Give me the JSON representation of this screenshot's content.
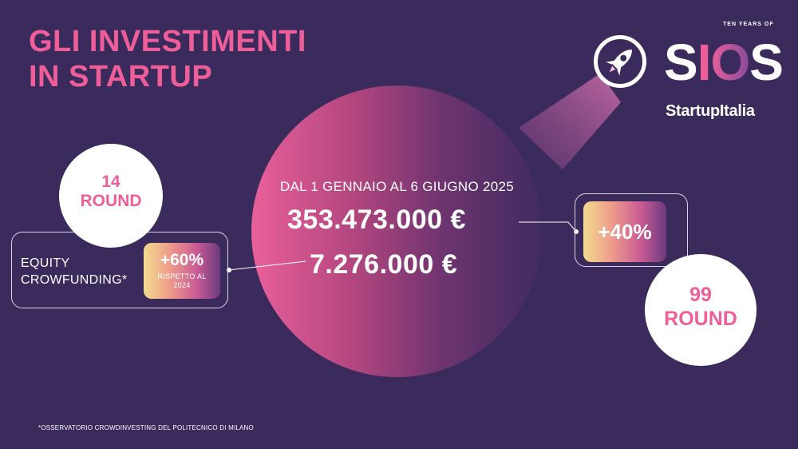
{
  "title": {
    "line1": "GLI INVESTIMENTI",
    "line2": "IN STARTUP"
  },
  "main": {
    "period": "DAL 1 GENNAIO AL 6 GIUGNO 2025",
    "total_amount": "353.473.000 €",
    "equity_amount": "7.276.000 €"
  },
  "equity": {
    "label_line1": "EQUITY",
    "label_line2": "CROWFUNDING*",
    "change": "+60%",
    "change_note_line1": "RISPETTO AL",
    "change_note_line2": "2024",
    "rounds_number": "14",
    "rounds_label": "ROUND"
  },
  "total": {
    "change": "+40%",
    "rounds_number": "99",
    "rounds_label": "ROUND"
  },
  "footnote": "*OSSERVATORIO CROWDINVESTING DEL POLITECNICO DI MILANO",
  "logo": {
    "pretitle": "TEN YEARS OF",
    "s1": "S",
    "i": "I",
    "o": "O",
    "s2": "S",
    "subtitle": "StartupItalia",
    "icon": "rocket-icon"
  },
  "colors": {
    "background": "#3a2b5c",
    "accent_pink": "#ee5f9a",
    "white": "#ffffff"
  }
}
